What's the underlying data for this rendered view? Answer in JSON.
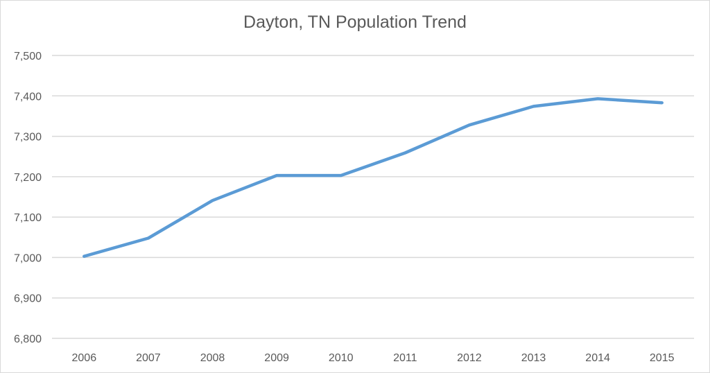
{
  "chart_data": {
    "type": "line",
    "title": "Dayton, TN Population Trend",
    "xlabel": "",
    "ylabel": "",
    "categories": [
      "2006",
      "2007",
      "2008",
      "2009",
      "2010",
      "2011",
      "2012",
      "2013",
      "2014",
      "2015"
    ],
    "series": [
      {
        "name": "Population",
        "color": "#5b9bd5",
        "values": [
          7003,
          7048,
          7141,
          7203,
          7203,
          7259,
          7328,
          7374,
          7393,
          7383
        ]
      }
    ],
    "ylim": [
      6800,
      7500
    ],
    "yticks": [
      "6,800",
      "6,900",
      "7,000",
      "7,100",
      "7,200",
      "7,300",
      "7,400",
      "7,500"
    ],
    "grid": true,
    "legend": "none"
  },
  "colors": {
    "line": "#5b9bd5",
    "grid": "#d9d9d9",
    "text": "#595959"
  }
}
